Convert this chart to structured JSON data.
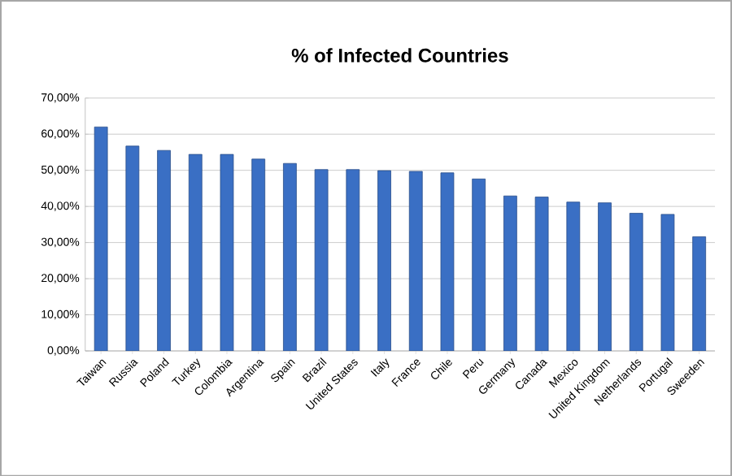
{
  "chart_data": {
    "type": "bar",
    "title": "% of Infected Countries",
    "categories": [
      "Taiwan",
      "Russia",
      "Poland",
      "Turkey",
      "Colombia",
      "Argentina",
      "Spain",
      "Brazil",
      "United States",
      "Italy",
      "France",
      "Chile",
      "Peru",
      "Germany",
      "Canada",
      "Mexico",
      "United Kingdom",
      "Netherlands",
      "Portugal",
      "Sweeden"
    ],
    "values": [
      62.0,
      56.7,
      55.5,
      54.4,
      54.4,
      53.1,
      51.9,
      50.2,
      50.2,
      49.9,
      49.7,
      49.3,
      47.6,
      42.9,
      42.6,
      41.2,
      41.0,
      38.1,
      37.8,
      31.6
    ],
    "color": "#3a6fc4",
    "ylim": [
      0,
      70
    ],
    "yticks": [
      {
        "value": 0,
        "label": "0,00%"
      },
      {
        "value": 10,
        "label": "10,00%"
      },
      {
        "value": 20,
        "label": "20,00%"
      },
      {
        "value": 30,
        "label": "30,00%"
      },
      {
        "value": 40,
        "label": "40,00%"
      },
      {
        "value": 50,
        "label": "50,00%"
      },
      {
        "value": 60,
        "label": "60,00%"
      },
      {
        "value": 70,
        "label": "70,00%"
      }
    ],
    "grid": "y"
  }
}
